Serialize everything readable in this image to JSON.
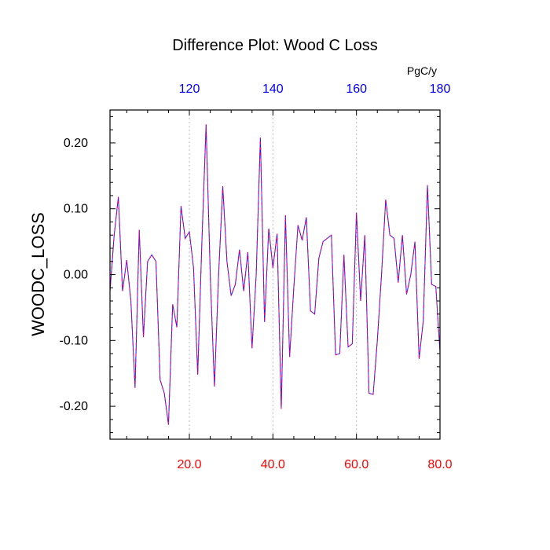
{
  "chart_data": {
    "type": "line",
    "title": "Difference Plot: Wood C Loss",
    "ylabel": "WOODC_LOSS",
    "top_axis_unit": "PgC/y",
    "xlim": [
      1,
      80
    ],
    "ylim": [
      -0.25,
      0.25
    ],
    "top_xlim": [
      101,
      180
    ],
    "bottom_ticks": [
      {
        "value": 20,
        "label": "20.0"
      },
      {
        "value": 40,
        "label": "40.0"
      },
      {
        "value": 60,
        "label": "60.0"
      },
      {
        "value": 80,
        "label": "80.0"
      }
    ],
    "top_ticks": [
      {
        "value": 120,
        "label": "120"
      },
      {
        "value": 140,
        "label": "140"
      },
      {
        "value": 160,
        "label": "160"
      },
      {
        "value": 180,
        "label": "180"
      }
    ],
    "y_ticks": [
      {
        "value": 0.2,
        "label": "0.20"
      },
      {
        "value": 0.1,
        "label": "0.10"
      },
      {
        "value": 0.0,
        "label": "0.00"
      },
      {
        "value": -0.1,
        "label": "-0.10"
      },
      {
        "value": -0.2,
        "label": "-0.20"
      }
    ],
    "grid": "vertical dotted at major x ticks",
    "series": [
      {
        "color": "#7a1fd6",
        "style": "dashed",
        "x": [
          1,
          2,
          3,
          4,
          5,
          6,
          7,
          8,
          9,
          10,
          11,
          12,
          13,
          14,
          15,
          16,
          17,
          18,
          19,
          20,
          21,
          22,
          23,
          24,
          25,
          26,
          27,
          28,
          29,
          30,
          31,
          32,
          33,
          34,
          35,
          36,
          37,
          38,
          39,
          40,
          41,
          42,
          43,
          44,
          45,
          46,
          47,
          48,
          49,
          50,
          51,
          52,
          53,
          54,
          55,
          56,
          57,
          58,
          59,
          60,
          61,
          62,
          63,
          64,
          65,
          66,
          67,
          68,
          69,
          70,
          71,
          72,
          73,
          74,
          75,
          76,
          77,
          78,
          79,
          80
        ],
        "values": [
          -0.025,
          0.06,
          0.118,
          -0.025,
          0.022,
          -0.04,
          -0.172,
          0.068,
          -0.095,
          0.02,
          0.03,
          0.02,
          -0.16,
          -0.18,
          -0.228,
          -0.045,
          -0.08,
          0.104,
          0.055,
          0.065,
          0.01,
          -0.152,
          0.05,
          0.228,
          0.0,
          -0.17,
          0.0,
          0.134,
          0.02,
          -0.032,
          -0.015,
          0.038,
          -0.025,
          0.034,
          -0.112,
          0.0,
          0.208,
          -0.072,
          0.07,
          0.01,
          0.062,
          -0.204,
          0.09,
          -0.125,
          -0.02,
          0.075,
          0.052,
          0.087,
          -0.055,
          -0.06,
          0.025,
          0.05,
          0.055,
          0.06,
          -0.122,
          -0.12,
          0.03,
          -0.11,
          -0.105,
          0.094,
          -0.04,
          0.06,
          -0.18,
          -0.182,
          -0.1,
          0.0,
          0.114,
          0.06,
          0.055,
          -0.012,
          0.06,
          -0.03,
          0.0,
          0.05,
          -0.128,
          -0.07,
          0.136,
          -0.015,
          -0.018,
          -0.118
        ]
      }
    ]
  }
}
